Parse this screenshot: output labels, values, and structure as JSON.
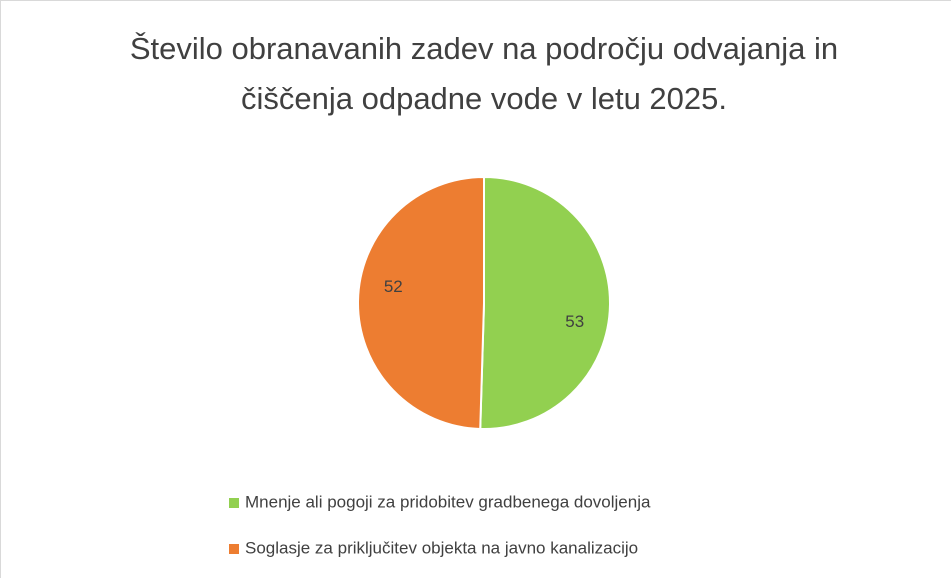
{
  "chart_data": {
    "type": "pie",
    "title": "Število obranavanih zadev na področju odvajanja in čiščenja odpadne vode v letu 2025.",
    "categories": [
      "Mnenje ali pogoji za pridobitev gradbenega dovoljenja",
      "Soglasje za priključitev objekta na javno kanalizacijo"
    ],
    "values": [
      53,
      52
    ],
    "colors": [
      "#92d050",
      "#ed7d31"
    ],
    "legend": "bottom"
  }
}
